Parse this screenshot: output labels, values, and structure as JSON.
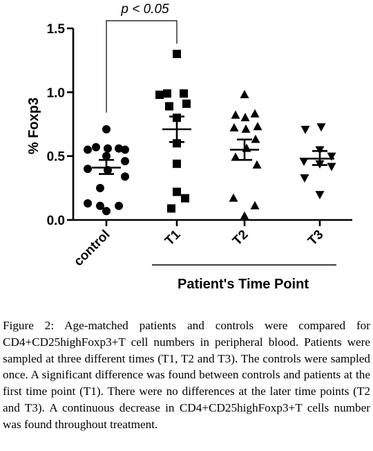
{
  "chart_data": {
    "type": "scatter",
    "title": "",
    "ylabel": "% Foxp3",
    "xlabel": "Patient's Time Point",
    "ylim": [
      0,
      1.5
    ],
    "yticks": [
      0.0,
      0.5,
      1.0,
      1.5
    ],
    "ytick_labels": [
      "0.0",
      "0.5",
      "1.0",
      "1.5"
    ],
    "categories": [
      "control",
      "T1",
      "T2",
      "T3"
    ],
    "series": [
      {
        "category": "control",
        "marker": "circle",
        "points": [
          0.71,
          0.57,
          0.56,
          0.56,
          0.55,
          0.55,
          0.5,
          0.46,
          0.4,
          0.39,
          0.34,
          0.25,
          0.13,
          0.11,
          0.11,
          0.07
        ],
        "mean": 0.41,
        "sem_low": 0.36,
        "sem_high": 0.47
      },
      {
        "category": "T1",
        "marker": "square",
        "points": [
          1.3,
          0.99,
          0.99,
          0.98,
          0.91,
          0.89,
          0.8,
          0.6,
          0.44,
          0.22,
          0.17,
          0.09
        ],
        "mean": 0.71,
        "sem_low": 0.61,
        "sem_high": 0.81
      },
      {
        "category": "T2",
        "marker": "triangle",
        "points": [
          0.98,
          0.83,
          0.82,
          0.8,
          0.73,
          0.72,
          0.71,
          0.63,
          0.56,
          0.49,
          0.43,
          0.17,
          0.11,
          0.03
        ],
        "mean": 0.55,
        "sem_low": 0.47,
        "sem_high": 0.63
      },
      {
        "category": "T3",
        "marker": "inverted-triangle",
        "points": [
          0.73,
          0.71,
          0.55,
          0.5,
          0.46,
          0.44,
          0.42,
          0.33,
          0.2
        ],
        "mean": 0.48,
        "sem_low": 0.43,
        "sem_high": 0.54
      }
    ],
    "annotations": [
      {
        "text": "p < 0.05",
        "between": [
          "control",
          "T1"
        ]
      }
    ],
    "groups": [
      {
        "label": "Patient's Time Point",
        "categories": [
          "T1",
          "T2",
          "T3"
        ]
      }
    ]
  },
  "caption": {
    "lead": "Figure 2:",
    "text": "Age-matched patients and controls were compared for CD4+CD25highFoxp3+T cell numbers in peripheral blood. Patients were sampled at three different times (T1, T2 and T3). The controls were sampled once. A significant difference was found between controls and patients at the first time point (T1). There were no differences at the later time points (T2 and T3). A continuous decrease in CD4+CD25highFoxp3+T cells number was found throughout treatment."
  }
}
